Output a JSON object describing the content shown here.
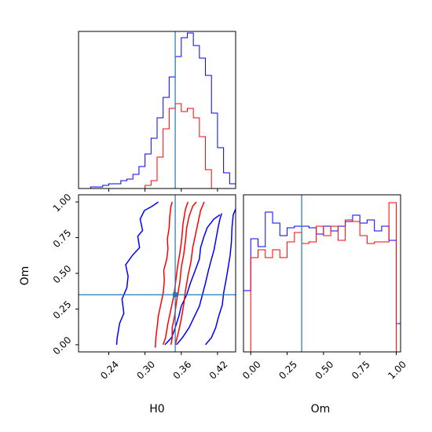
{
  "chart_data": {
    "type": "corner",
    "parameters": [
      "H0",
      "Om"
    ],
    "truth": {
      "H0": 0.35,
      "Om": 0.35
    },
    "truth_color": "#1f77b4",
    "series": [
      {
        "color": "#0000ff"
      },
      {
        "color": "#ff0000"
      }
    ],
    "panels": [
      {
        "id": "hist-H0",
        "type": "step-histogram",
        "x_range": [
          0.19,
          0.45
        ],
        "y_range": [
          0,
          1.0
        ],
        "x_ticks": [
          0.24,
          0.3,
          0.36,
          0.42
        ],
        "series": [
          {
            "color": "#0000ff",
            "bin_edges": [
              0.19,
              0.2,
              0.21,
              0.22,
              0.23,
              0.24,
              0.25,
              0.26,
              0.27,
              0.28,
              0.29,
              0.3,
              0.31,
              0.32,
              0.33,
              0.34,
              0.35,
              0.36,
              0.37,
              0.38,
              0.39,
              0.4,
              0.41,
              0.42,
              0.43,
              0.44,
              0.45
            ],
            "counts": [
              0,
              0,
              0.01,
              0.01,
              0.02,
              0.03,
              0.03,
              0.05,
              0.06,
              0.09,
              0.14,
              0.22,
              0.32,
              0.45,
              0.58,
              0.71,
              0.84,
              0.96,
              0.99,
              0.91,
              0.83,
              0.72,
              0.48,
              0.26,
              0.1,
              0.03
            ]
          },
          {
            "color": "#ff0000",
            "bin_edges": [
              0.3,
              0.31,
              0.32,
              0.33,
              0.34,
              0.35,
              0.36,
              0.37,
              0.38,
              0.39,
              0.4,
              0.41
            ],
            "counts": [
              0.02,
              0.05,
              0.2,
              0.38,
              0.51,
              0.54,
              0.49,
              0.51,
              0.45,
              0.33,
              0.12
            ]
          }
        ]
      },
      {
        "id": "contour-H0-Om",
        "type": "contour",
        "x_range": [
          0.19,
          0.45
        ],
        "y_range": [
          -0.05,
          1.05
        ],
        "x_ticks": [
          0.24,
          0.3,
          0.36,
          0.42
        ],
        "y_ticks": [
          0.0,
          0.25,
          0.5,
          0.75,
          1.0
        ],
        "series": [
          {
            "color": "#0000ff",
            "contours": [
              [
                [
                  0.253,
                  0.0
                ],
                [
                  0.254,
                  0.05
                ],
                [
                  0.258,
                  0.15
                ],
                [
                  0.265,
                  0.22
                ],
                [
                  0.262,
                  0.32
                ],
                [
                  0.27,
                  0.4
                ],
                [
                  0.272,
                  0.48
                ],
                [
                  0.268,
                  0.56
                ],
                [
                  0.28,
                  0.63
                ],
                [
                  0.291,
                  0.68
                ],
                [
                  0.288,
                  0.76
                ],
                [
                  0.296,
                  0.8
                ],
                [
                  0.292,
                  0.88
                ],
                [
                  0.299,
                  0.94
                ],
                [
                  0.312,
                  0.97
                ],
                [
                  0.322,
                  1.0
                ]
              ],
              [
                [
                  0.333,
                  0.0
                ],
                [
                  0.344,
                  0.05
                ],
                [
                  0.35,
                  0.12
                ],
                [
                  0.356,
                  0.2
                ],
                [
                  0.36,
                  0.27
                ],
                [
                  0.369,
                  0.35
                ],
                [
                  0.375,
                  0.43
                ],
                [
                  0.383,
                  0.52
                ],
                [
                  0.39,
                  0.6
                ],
                [
                  0.392,
                  0.68
                ],
                [
                  0.397,
                  0.75
                ],
                [
                  0.403,
                  0.82
                ],
                [
                  0.414,
                  0.88
                ],
                [
                  0.424,
                  0.91
                ]
              ],
              [
                [
                  0.352,
                  0.0
                ],
                [
                  0.362,
                  0.05
                ],
                [
                  0.373,
                  0.12
                ],
                [
                  0.382,
                  0.2
                ],
                [
                  0.39,
                  0.27
                ],
                [
                  0.395,
                  0.35
                ],
                [
                  0.4,
                  0.43
                ],
                [
                  0.405,
                  0.52
                ],
                [
                  0.41,
                  0.6
                ],
                [
                  0.414,
                  0.66
                ],
                [
                  0.418,
                  0.75
                ],
                [
                  0.421,
                  0.82
                ],
                [
                  0.424,
                  0.88
                ],
                [
                  0.427,
                  0.92
                ]
              ],
              [
                [
                  0.4,
                  0.0
                ],
                [
                  0.41,
                  0.05
                ],
                [
                  0.417,
                  0.12
                ],
                [
                  0.422,
                  0.2
                ],
                [
                  0.428,
                  0.28
                ],
                [
                  0.43,
                  0.36
                ],
                [
                  0.434,
                  0.45
                ],
                [
                  0.438,
                  0.55
                ],
                [
                  0.441,
                  0.63
                ],
                [
                  0.443,
                  0.72
                ],
                [
                  0.444,
                  0.82
                ],
                [
                  0.446,
                  0.91
                ],
                [
                  0.45,
                  0.95
                ]
              ]
            ]
          },
          {
            "color": "#ff0000",
            "contours": [
              [
                [
                  0.317,
                  -0.02
                ],
                [
                  0.318,
                  0.05
                ],
                [
                  0.32,
                  0.12
                ],
                [
                  0.322,
                  0.2
                ],
                [
                  0.326,
                  0.28
                ],
                [
                  0.33,
                  0.36
                ],
                [
                  0.332,
                  0.45
                ],
                [
                  0.331,
                  0.52
                ],
                [
                  0.336,
                  0.6
                ],
                [
                  0.338,
                  0.67
                ],
                [
                  0.337,
                  0.74
                ],
                [
                  0.34,
                  0.82
                ],
                [
                  0.341,
                  0.9
                ],
                [
                  0.343,
                  0.97
                ],
                [
                  0.345,
                  1.0
                ]
              ],
              [
                [
                  0.343,
                  0.0
                ],
                [
                  0.345,
                  0.05
                ],
                [
                  0.345,
                  0.12
                ],
                [
                  0.349,
                  0.2
                ],
                [
                  0.352,
                  0.3
                ],
                [
                  0.355,
                  0.37
                ],
                [
                  0.358,
                  0.45
                ],
                [
                  0.36,
                  0.54
                ],
                [
                  0.364,
                  0.63
                ],
                [
                  0.367,
                  0.73
                ],
                [
                  0.369,
                  0.82
                ],
                [
                  0.373,
                  0.9
                ],
                [
                  0.379,
                  0.97
                ],
                [
                  0.385,
                  1.0
                ]
              ],
              [
                [
                  0.33,
                  0.0
                ],
                [
                  0.334,
                  0.05
                ],
                [
                  0.338,
                  0.15
                ],
                [
                  0.343,
                  0.25
                ],
                [
                  0.348,
                  0.35
                ],
                [
                  0.351,
                  0.45
                ],
                [
                  0.354,
                  0.55
                ],
                [
                  0.358,
                  0.65
                ],
                [
                  0.361,
                  0.75
                ],
                [
                  0.363,
                  0.85
                ],
                [
                  0.367,
                  0.95
                ],
                [
                  0.371,
                  1.0
                ]
              ],
              [
                [
                  0.35,
                  0.0
                ],
                [
                  0.355,
                  0.08
                ],
                [
                  0.36,
                  0.18
                ],
                [
                  0.364,
                  0.28
                ],
                [
                  0.367,
                  0.38
                ],
                [
                  0.371,
                  0.48
                ],
                [
                  0.376,
                  0.58
                ],
                [
                  0.379,
                  0.68
                ],
                [
                  0.384,
                  0.78
                ],
                [
                  0.389,
                  0.88
                ],
                [
                  0.392,
                  0.94
                ],
                [
                  0.398,
                  1.0
                ]
              ]
            ]
          }
        ]
      },
      {
        "id": "hist-Om",
        "type": "step-histogram",
        "x_range": [
          -0.05,
          1.03
        ],
        "y_range": [
          0,
          1.0
        ],
        "x_ticks": [
          0.0,
          0.25,
          0.5,
          0.75,
          1.0
        ],
        "series": [
          {
            "color": "#0000ff",
            "bin_edges": [
              -0.05,
              0.0,
              0.05,
              0.1,
              0.15,
              0.2,
              0.25,
              0.3,
              0.35,
              0.4,
              0.45,
              0.5,
              0.55,
              0.6,
              0.65,
              0.7,
              0.75,
              0.8,
              0.85,
              0.9,
              0.95,
              1.0,
              1.03
            ],
            "counts": [
              0.39,
              0.72,
              0.67,
              0.89,
              0.82,
              0.74,
              0.79,
              0.8,
              0.8,
              0.79,
              0.75,
              0.8,
              0.77,
              0.8,
              0.83,
              0.87,
              0.82,
              0.84,
              0.77,
              0.8,
              0.71,
              0.18
            ]
          },
          {
            "color": "#ff0000",
            "bin_edges": [
              -0.05,
              0.0,
              0.05,
              0.1,
              0.15,
              0.2,
              0.25,
              0.3,
              0.35,
              0.4,
              0.45,
              0.5,
              0.55,
              0.6,
              0.65,
              0.7,
              0.75,
              0.8,
              0.85,
              0.9,
              0.95,
              1.0,
              1.03
            ],
            "counts": [
              0.0,
              0.6,
              0.65,
              0.6,
              0.65,
              0.6,
              0.7,
              0.76,
              0.69,
              0.7,
              0.8,
              0.74,
              0.8,
              0.71,
              0.84,
              0.83,
              0.74,
              0.69,
              0.7,
              0.7,
              0.95,
              0.0
            ]
          }
        ]
      }
    ],
    "axis_titles": {
      "x_left": "H0",
      "x_right": "Om",
      "y_left": "Om"
    }
  }
}
